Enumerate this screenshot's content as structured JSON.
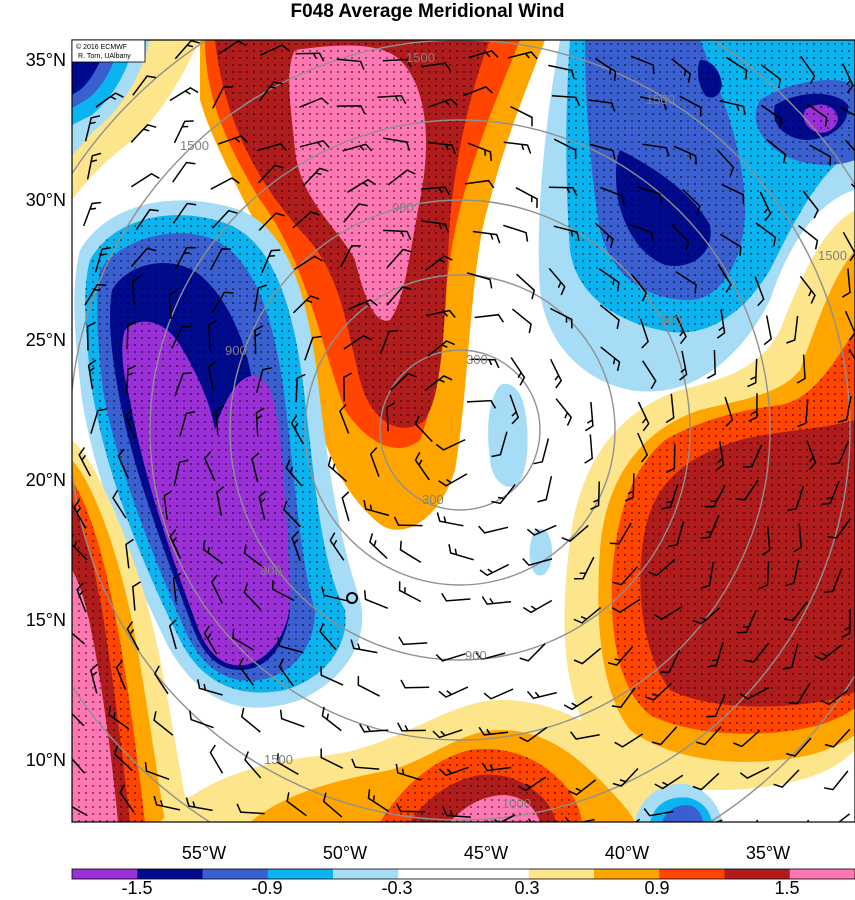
{
  "title": "F048 Average Meridional Wind",
  "credit": {
    "line1": "© 2016 ECMWF",
    "line2": "R. Torn, UAlbany"
  },
  "lat_ticks": [
    "35°N",
    "30°N",
    "25°N",
    "20°N",
    "15°N",
    "10°N"
  ],
  "lon_ticks": [
    "55°W",
    "50°W",
    "45°W",
    "40°W",
    "35°W"
  ],
  "colorbar": {
    "colors": [
      "#9b30d8",
      "#000a8f",
      "#3a5fd0",
      "#0ab4f0",
      "#a6dcf5",
      "#ffffff",
      "#ffffff",
      "#fde58c",
      "#ffa500",
      "#ff4500",
      "#b01c1c",
      "#ff78b4"
    ],
    "labels": [
      "-1.5",
      "-0.9",
      "-0.3",
      "0.3",
      "0.9",
      "1.5"
    ]
  },
  "contour_labels": [
    "1500",
    "1500",
    "1500",
    "1500",
    "900",
    "900",
    "900",
    "900",
    "900",
    "300",
    "300",
    "1500",
    "1000"
  ],
  "map": {
    "lon_range": [
      -59,
      -32
    ],
    "lat_range": [
      8,
      36
    ],
    "center_marker": "circle"
  }
}
